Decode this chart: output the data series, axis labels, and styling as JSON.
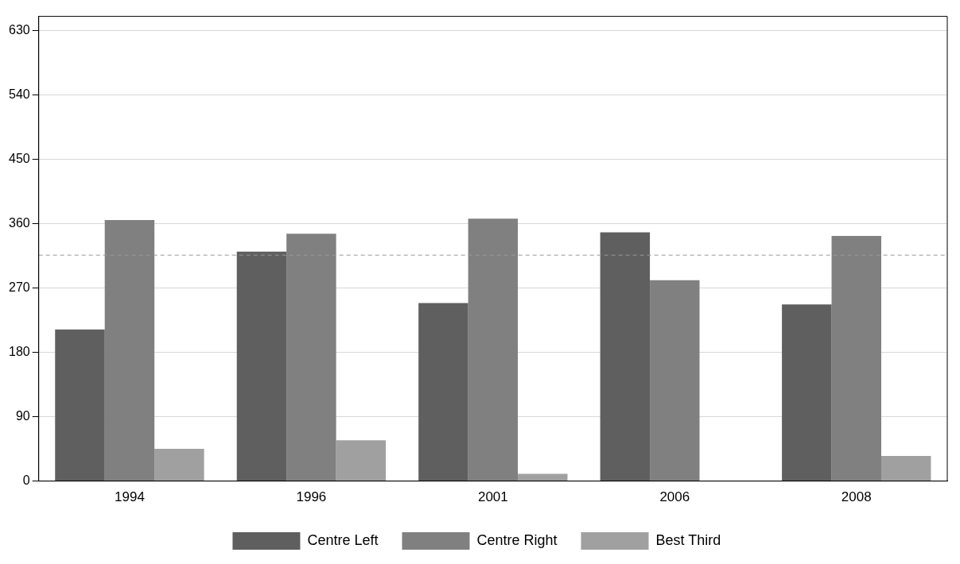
{
  "chart_data": {
    "type": "bar",
    "categories": [
      "1994",
      "1996",
      "2001",
      "2006",
      "2008"
    ],
    "series": [
      {
        "name": "Centre Left",
        "color": "#5f5f5f",
        "values": [
          212,
          321,
          249,
          348,
          247
        ]
      },
      {
        "name": "Centre Right",
        "color": "#808080",
        "values": [
          365,
          346,
          367,
          281,
          343
        ]
      },
      {
        "name": "Best Third",
        "color": "#a0a0a0",
        "values": [
          45,
          57,
          10,
          0,
          35
        ]
      }
    ],
    "ylim": [
      0,
      650
    ],
    "yticks": [
      0,
      90,
      180,
      270,
      360,
      450,
      540,
      630
    ],
    "grid": "y",
    "legend": "bottom",
    "ref_lines": [
      {
        "axis": "y",
        "value": 316,
        "color": "#999999",
        "line_style": "dashed"
      }
    ]
  }
}
